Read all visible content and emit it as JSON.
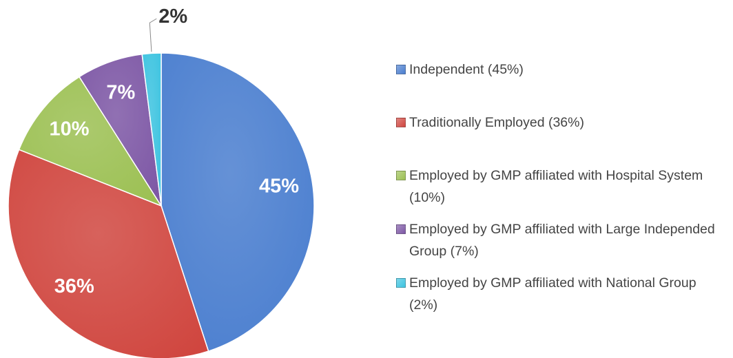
{
  "chart_data": {
    "type": "pie",
    "categories": [
      "Independent (45%)",
      "Traditionally Employed (36%)",
      "Employed by GMP affiliated with Hospital System (10%)",
      "Employed by GMP affiliated with Large Independed Group (7%)",
      "Employed by GMP affiliated with National Group (2%)"
    ],
    "values": [
      45,
      36,
      10,
      7,
      2
    ],
    "value_labels": [
      "45%",
      "36%",
      "10%",
      "7%",
      "2%"
    ],
    "colors": [
      "#4a7ecf",
      "#d0463f",
      "#9cc053",
      "#7d57a5",
      "#3cc3e0"
    ],
    "legend": "right"
  }
}
